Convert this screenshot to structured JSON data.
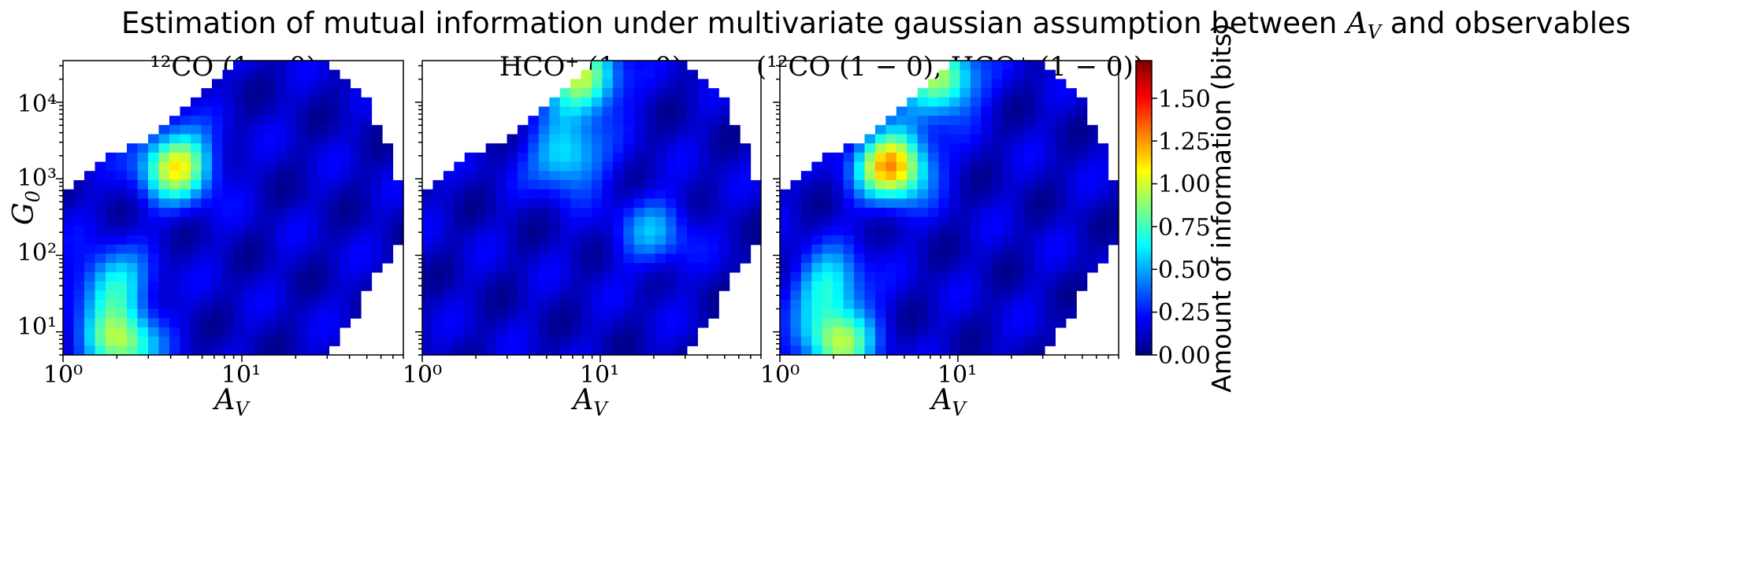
{
  "chart_data": {
    "type": "heatmap",
    "title": "Estimation of mutual information under multivariate gaussian assumption between A_V and observables",
    "panels": [
      {
        "title": "¹²CO (1 − 0)",
        "xlabel": "A_V",
        "ylabel": "G_0",
        "hotspots": [
          {
            "av": 4.3,
            "g0": 1500,
            "value": 0.95
          },
          {
            "av": 2.1,
            "g0": 7,
            "value": 0.8
          },
          {
            "av": 1.9,
            "g0": 40,
            "value": 0.55
          }
        ]
      },
      {
        "title": "HCO⁺ (1 − 0)",
        "xlabel": "A_V",
        "ylabel": "",
        "hotspots": [
          {
            "av": 8.0,
            "g0": 20000,
            "value": 0.85
          },
          {
            "av": 6.5,
            "g0": 2000,
            "value": 0.55
          },
          {
            "av": 20.0,
            "g0": 200,
            "value": 0.35
          }
        ]
      },
      {
        "title": "(¹²CO (1 − 0), HCO⁺ (1 − 0))",
        "xlabel": "A_V",
        "ylabel": "",
        "hotspots": [
          {
            "av": 4.3,
            "g0": 1500,
            "value": 1.15
          },
          {
            "av": 8.0,
            "g0": 20000,
            "value": 0.85
          },
          {
            "av": 2.1,
            "g0": 7,
            "value": 0.8
          },
          {
            "av": 1.9,
            "g0": 40,
            "value": 0.55
          }
        ]
      }
    ],
    "xaxis": {
      "scale": "log",
      "range": [
        1,
        80
      ],
      "ticks": [
        "10⁰",
        "10¹"
      ]
    },
    "yaxis": {
      "scale": "log",
      "range": [
        5,
        35000
      ],
      "ticks": [
        "10¹",
        "10²",
        "10³",
        "10⁴"
      ]
    },
    "colorbar": {
      "label": "Amount of information (bits)",
      "range": [
        0,
        1.72
      ],
      "ticks": [
        "0.00",
        "0.25",
        "0.50",
        "0.75",
        "1.00",
        "1.25",
        "1.50"
      ],
      "colormap": "jet"
    }
  },
  "labels": {
    "title_prefix": "Estimation of mutual information under multivariate gaussian assumption between ",
    "title_var": "A",
    "title_sub": "V",
    "title_suffix": " and observables",
    "panel1": "¹²CO (1 − 0)",
    "panel2": "HCO⁺ (1 − 0)",
    "panel3": "(¹²CO (1 − 0), HCO⁺ (1 − 0))",
    "xlab_main": "A",
    "xlab_sub": "V",
    "ylab_main": "G",
    "ylab_sub": "0",
    "x_tick_0": "10⁰",
    "x_tick_1": "10¹",
    "y_tick_1": "10¹",
    "y_tick_2": "10²",
    "y_tick_3": "10³",
    "y_tick_4": "10⁴",
    "cb_label": "Amount of information (bits)",
    "cb_0": "0.00",
    "cb_1": "0.25",
    "cb_2": "0.50",
    "cb_3": "0.75",
    "cb_4": "1.00",
    "cb_5": "1.25",
    "cb_6": "1.50"
  }
}
